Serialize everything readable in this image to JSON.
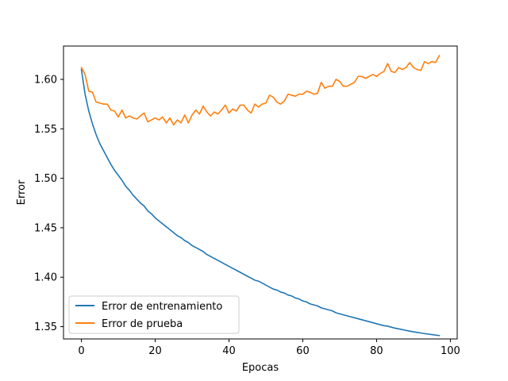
{
  "chart_data": {
    "type": "line",
    "title": "",
    "xlabel": "Epocas",
    "ylabel": "Error",
    "xlim": [
      -4.85,
      101.85
    ],
    "ylim": [
      1.3376,
      1.6337
    ],
    "xticks": [
      0,
      20,
      40,
      60,
      80,
      100
    ],
    "xtick_labels": [
      "0",
      "20",
      "40",
      "60",
      "80",
      "100"
    ],
    "yticks": [
      1.35,
      1.4,
      1.45,
      1.5,
      1.55,
      1.6
    ],
    "ytick_labels": [
      "1.35",
      "1.40",
      "1.45",
      "1.50",
      "1.55",
      "1.60"
    ],
    "grid": false,
    "legend_position": "lower-left",
    "series": [
      {
        "name": "Error de entrenamiento",
        "color": "#1f77b4",
        "x": [
          0,
          1,
          2,
          3,
          4,
          5,
          6,
          7,
          8,
          9,
          10,
          11,
          12,
          13,
          14,
          15,
          16,
          17,
          18,
          19,
          20,
          21,
          22,
          23,
          24,
          25,
          26,
          27,
          28,
          29,
          30,
          31,
          32,
          33,
          34,
          35,
          36,
          37,
          38,
          39,
          40,
          41,
          42,
          43,
          44,
          45,
          46,
          47,
          48,
          49,
          50,
          51,
          52,
          53,
          54,
          55,
          56,
          57,
          58,
          59,
          60,
          61,
          62,
          63,
          64,
          65,
          66,
          67,
          68,
          69,
          70,
          71,
          72,
          73,
          74,
          75,
          76,
          77,
          78,
          79,
          80,
          81,
          82,
          83,
          84,
          85,
          86,
          87,
          88,
          89,
          90,
          91,
          92,
          93,
          94,
          95,
          96,
          97
        ],
        "values": [
          1.61,
          1.585,
          1.568,
          1.555,
          1.544,
          1.535,
          1.528,
          1.521,
          1.514,
          1.508,
          1.503,
          1.498,
          1.492,
          1.488,
          1.483,
          1.479,
          1.475,
          1.472,
          1.467,
          1.464,
          1.46,
          1.457,
          1.454,
          1.451,
          1.448,
          1.445,
          1.442,
          1.44,
          1.437,
          1.435,
          1.432,
          1.43,
          1.428,
          1.426,
          1.423,
          1.421,
          1.419,
          1.417,
          1.415,
          1.413,
          1.411,
          1.409,
          1.407,
          1.405,
          1.403,
          1.401,
          1.399,
          1.397,
          1.396,
          1.394,
          1.392,
          1.39,
          1.388,
          1.387,
          1.385,
          1.384,
          1.382,
          1.381,
          1.379,
          1.378,
          1.376,
          1.375,
          1.373,
          1.372,
          1.371,
          1.369,
          1.368,
          1.367,
          1.366,
          1.364,
          1.363,
          1.362,
          1.361,
          1.36,
          1.359,
          1.358,
          1.357,
          1.356,
          1.355,
          1.354,
          1.353,
          1.352,
          1.351,
          1.3505,
          1.3495,
          1.3485,
          1.3478,
          1.347,
          1.3462,
          1.3455,
          1.3448,
          1.3442,
          1.3436,
          1.343,
          1.3425,
          1.342,
          1.3415,
          1.341
        ]
      },
      {
        "name": "Error de prueba",
        "color": "#ff7f0e",
        "x": [
          0,
          1,
          2,
          3,
          4,
          5,
          6,
          7,
          8,
          9,
          10,
          11,
          12,
          13,
          14,
          15,
          16,
          17,
          18,
          19,
          20,
          21,
          22,
          23,
          24,
          25,
          26,
          27,
          28,
          29,
          30,
          31,
          32,
          33,
          34,
          35,
          36,
          37,
          38,
          39,
          40,
          41,
          42,
          43,
          44,
          45,
          46,
          47,
          48,
          49,
          50,
          51,
          52,
          53,
          54,
          55,
          56,
          57,
          58,
          59,
          60,
          61,
          62,
          63,
          64,
          65,
          66,
          67,
          68,
          69,
          70,
          71,
          72,
          73,
          74,
          75,
          76,
          77,
          78,
          79,
          80,
          81,
          82,
          83,
          84,
          85,
          86,
          87,
          88,
          89,
          90,
          91,
          92,
          93,
          94,
          95,
          96,
          97
        ],
        "values": [
          1.612,
          1.605,
          1.588,
          1.587,
          1.577,
          1.576,
          1.575,
          1.575,
          1.569,
          1.568,
          1.562,
          1.569,
          1.561,
          1.563,
          1.561,
          1.56,
          1.563,
          1.566,
          1.557,
          1.559,
          1.561,
          1.559,
          1.562,
          1.556,
          1.561,
          1.554,
          1.559,
          1.556,
          1.564,
          1.556,
          1.564,
          1.569,
          1.565,
          1.573,
          1.567,
          1.563,
          1.567,
          1.565,
          1.569,
          1.574,
          1.566,
          1.57,
          1.568,
          1.574,
          1.574,
          1.569,
          1.566,
          1.575,
          1.572,
          1.575,
          1.576,
          1.584,
          1.582,
          1.577,
          1.575,
          1.578,
          1.585,
          1.584,
          1.583,
          1.585,
          1.585,
          1.588,
          1.587,
          1.585,
          1.586,
          1.597,
          1.591,
          1.593,
          1.593,
          1.6,
          1.598,
          1.593,
          1.593,
          1.595,
          1.597,
          1.603,
          1.603,
          1.601,
          1.603,
          1.605,
          1.603,
          1.606,
          1.608,
          1.616,
          1.608,
          1.607,
          1.612,
          1.61,
          1.612,
          1.617,
          1.612,
          1.61,
          1.609,
          1.618,
          1.616,
          1.618,
          1.617,
          1.624
        ]
      }
    ]
  }
}
